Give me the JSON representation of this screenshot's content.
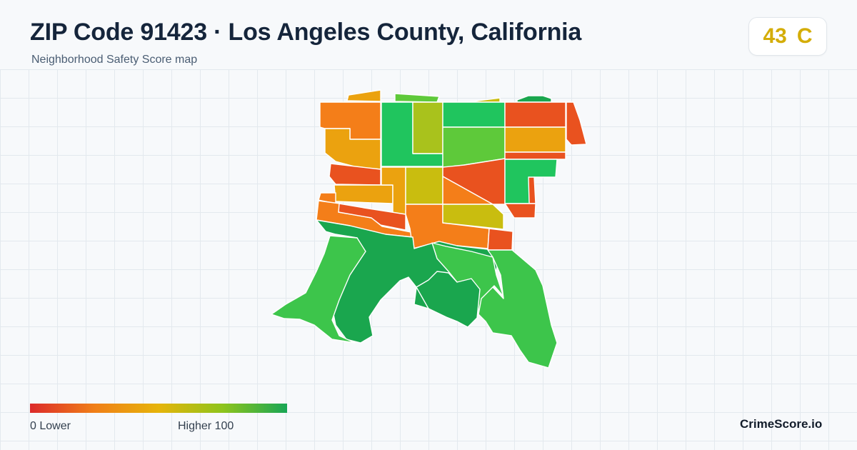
{
  "header": {
    "title": "ZIP Code 91423 · Los Angeles County, California",
    "subtitle": "Neighborhood Safety Score map"
  },
  "score": {
    "value": "43",
    "grade": "C",
    "color": "#d4ad08"
  },
  "legend": {
    "min_label": "0  Lower",
    "max_label": "Higher  100",
    "colors": [
      "#dc2a2a",
      "#f07f18",
      "#e6b40a",
      "#8ec41c",
      "#18a655"
    ]
  },
  "brand": "CrimeScore.io",
  "map": {
    "palette": {
      "red": "#e9521f",
      "orange": "#f47e19",
      "amber": "#eba20f",
      "yellow": "#c9bd0f",
      "olive": "#a9c21c",
      "lime": "#5ec93a",
      "green": "#20c55e",
      "mid_green": "#3dc54b",
      "dark_green": "#1aa64e"
    }
  }
}
